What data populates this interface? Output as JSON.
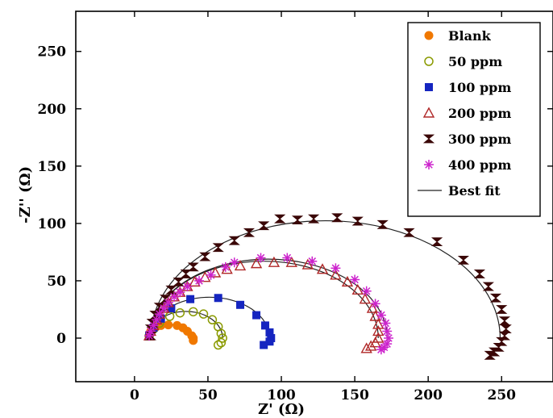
{
  "chart_data": {
    "type": "scatter",
    "title": "",
    "xlabel": "Z' (Ω)",
    "ylabel": "-Z'' (Ω)",
    "xlim": [
      -40,
      285
    ],
    "ylim": [
      -38,
      285
    ],
    "xticks": [
      0,
      50,
      100,
      150,
      200,
      250
    ],
    "yticks": [
      0,
      50,
      100,
      150,
      200,
      250
    ],
    "grid": false,
    "legend_position": "top-right",
    "legend": [
      "Blank",
      "50 ppm",
      "100 ppm",
      "200 ppm",
      "300 ppm",
      "400 ppm",
      "Best fit"
    ],
    "series": [
      {
        "name": "Blank",
        "marker": "circle-filled",
        "color": "#f07800",
        "points": [
          [
            10,
            2
          ],
          [
            11,
            6
          ],
          [
            14,
            9
          ],
          [
            18,
            11
          ],
          [
            23,
            11.5
          ],
          [
            29,
            11
          ],
          [
            33,
            9
          ],
          [
            36,
            6
          ],
          [
            39,
            2
          ],
          [
            40,
            0
          ],
          [
            40,
            -2
          ]
        ]
      },
      {
        "name": "50 ppm",
        "marker": "circle-open",
        "color": "#8a9a00",
        "points": [
          [
            10,
            2
          ],
          [
            13,
            8
          ],
          [
            17,
            13
          ],
          [
            24,
            19
          ],
          [
            31,
            22
          ],
          [
            40,
            23
          ],
          [
            47,
            21
          ],
          [
            53,
            16
          ],
          [
            57,
            10
          ],
          [
            59,
            4
          ],
          [
            60,
            0
          ],
          [
            59,
            -4
          ],
          [
            57,
            -6
          ]
        ]
      },
      {
        "name": "100 ppm",
        "marker": "square-filled",
        "color": "#1525c0",
        "points": [
          [
            10,
            2
          ],
          [
            13,
            9
          ],
          [
            18,
            17
          ],
          [
            25,
            26
          ],
          [
            38,
            34
          ],
          [
            57,
            35
          ],
          [
            72,
            29
          ],
          [
            83,
            20
          ],
          [
            89,
            11
          ],
          [
            92,
            5
          ],
          [
            93,
            0
          ],
          [
            92,
            -3
          ],
          [
            88,
            -6
          ]
        ]
      },
      {
        "name": "200 ppm",
        "marker": "triangle-open",
        "color": "#b02828",
        "points": [
          [
            10,
            2
          ],
          [
            11,
            6
          ],
          [
            13,
            11
          ],
          [
            15,
            16
          ],
          [
            17,
            21
          ],
          [
            20,
            26
          ],
          [
            23,
            31
          ],
          [
            27,
            36
          ],
          [
            31,
            40
          ],
          [
            36,
            45
          ],
          [
            41,
            49
          ],
          [
            48,
            53
          ],
          [
            55,
            57
          ],
          [
            63,
            60
          ],
          [
            72,
            63
          ],
          [
            83,
            65
          ],
          [
            95,
            66
          ],
          [
            107,
            66
          ],
          [
            118,
            64
          ],
          [
            128,
            60
          ],
          [
            137,
            55
          ],
          [
            145,
            49
          ],
          [
            152,
            42
          ],
          [
            157,
            34
          ],
          [
            162,
            26
          ],
          [
            164,
            19
          ],
          [
            166,
            12
          ],
          [
            166,
            6
          ],
          [
            166,
            0
          ],
          [
            164,
            -4
          ],
          [
            161,
            -7
          ],
          [
            158,
            -9
          ]
        ]
      },
      {
        "name": "300 ppm",
        "marker": "hourglass",
        "color": "#3a0606",
        "points": [
          [
            11,
            2
          ],
          [
            11,
            8
          ],
          [
            12,
            13
          ],
          [
            14,
            20
          ],
          [
            17,
            27
          ],
          [
            21,
            34
          ],
          [
            25,
            42
          ],
          [
            30,
            49
          ],
          [
            35,
            56
          ],
          [
            40,
            62
          ],
          [
            48,
            71
          ],
          [
            57,
            79
          ],
          [
            68,
            85
          ],
          [
            78,
            92
          ],
          [
            88,
            98
          ],
          [
            99,
            104
          ],
          [
            111,
            103
          ],
          [
            122,
            104
          ],
          [
            138,
            105
          ],
          [
            152,
            102
          ],
          [
            169,
            99
          ],
          [
            187,
            92
          ],
          [
            206,
            84
          ],
          [
            224,
            68
          ],
          [
            235,
            56
          ],
          [
            241,
            45
          ],
          [
            246,
            35
          ],
          [
            250,
            25
          ],
          [
            252,
            15
          ],
          [
            253,
            8
          ],
          [
            252,
            2
          ],
          [
            250,
            -3
          ],
          [
            248,
            -8
          ],
          [
            245,
            -12
          ],
          [
            242,
            -15
          ]
        ]
      },
      {
        "name": "400 ppm",
        "marker": "asterisk",
        "color": "#cc22cc",
        "points": [
          [
            10,
            2
          ],
          [
            11,
            6
          ],
          [
            13,
            11
          ],
          [
            15,
            16
          ],
          [
            17,
            21
          ],
          [
            20,
            26
          ],
          [
            23,
            31
          ],
          [
            27,
            36
          ],
          [
            31,
            40
          ],
          [
            36,
            45
          ],
          [
            44,
            50
          ],
          [
            52,
            55
          ],
          [
            62,
            62
          ],
          [
            68,
            66
          ],
          [
            86,
            70
          ],
          [
            104,
            70
          ],
          [
            121,
            67
          ],
          [
            137,
            61
          ],
          [
            150,
            51
          ],
          [
            158,
            41
          ],
          [
            164,
            30
          ],
          [
            168,
            20
          ],
          [
            171,
            13
          ],
          [
            172,
            6
          ],
          [
            173,
            0
          ],
          [
            172,
            -5
          ],
          [
            170,
            -8
          ],
          [
            168,
            -10
          ]
        ]
      }
    ],
    "fits": [
      {
        "name": "Best fit",
        "center": [
          25,
          0
        ],
        "radius": 15,
        "scale_y": 0.78
      },
      {
        "name": "Best fit",
        "center": [
          35,
          0
        ],
        "radius": 25,
        "scale_y": 0.93
      },
      {
        "name": "Best fit",
        "center": [
          51,
          0
        ],
        "radius": 41,
        "scale_y": 0.87
      },
      {
        "name": "Best fit",
        "center": [
          88,
          0
        ],
        "radius": 78,
        "scale_y": 0.86
      },
      {
        "name": "Best fit",
        "center": [
          91,
          0
        ],
        "radius": 81,
        "scale_y": 0.85
      },
      {
        "name": "Best fit",
        "center": [
          130,
          0
        ],
        "radius": 119,
        "scale_y": 0.86
      }
    ]
  }
}
